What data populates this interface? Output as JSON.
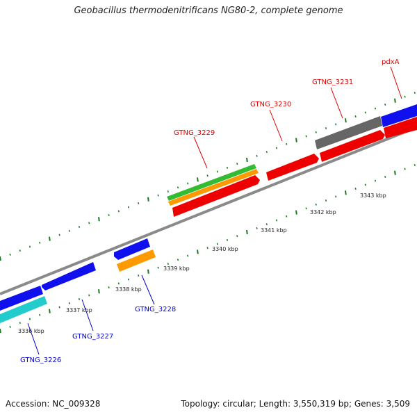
{
  "title": "Geobacillus thermodenitrificans NG80-2, complete genome",
  "colors": {
    "backbone": "#8a8a8a",
    "tick": "#1f7a1f",
    "label_forward": "#e00000",
    "label_reverse": "#0000c8",
    "gene_red": "#ee0000",
    "gene_blue": "#1010ee",
    "gene_green": "#33bb33",
    "gene_orange": "#ff9900",
    "gene_grey": "#666666",
    "gene_cyan": "#22cccc"
  },
  "kbp_labels": [
    "3336 kbp",
    "3337 kbp",
    "3338 kbp",
    "3339 kbp",
    "3340 kbp",
    "3341 kbp",
    "3342 kbp",
    "3343 kbp"
  ],
  "gene_labels": {
    "forward": [
      "GTNG_3229",
      "GTNG_3230",
      "GTNG_3231",
      "pdxA"
    ],
    "reverse": [
      "GTNG_3226",
      "GTNG_3227",
      "GTNG_3228"
    ]
  },
  "footer": {
    "accession": "Accession: NC_009328",
    "summary": "Topology: circular; Length: 3,550,319 bp; Genes: 3,509"
  }
}
